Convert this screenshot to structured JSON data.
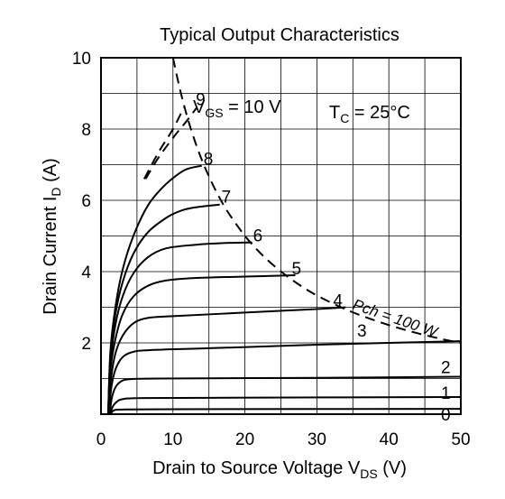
{
  "chart_data": {
    "type": "line",
    "title": "Typical Output Characteristics",
    "xlabel_main": "Drain to Source Voltage  V",
    "xlabel_sub": "DS",
    "xlabel_unit": "  (V)",
    "ylabel_main": "Drain Current  I",
    "ylabel_sub": "D",
    "ylabel_unit": "  (A)",
    "xlim": [
      0,
      50
    ],
    "ylim": [
      0,
      10
    ],
    "xticks": [
      0,
      10,
      20,
      30,
      40,
      50
    ],
    "yticks": [
      2,
      4,
      6,
      8,
      10
    ],
    "x_origin_label": "0",
    "grid": true,
    "annotations": {
      "vgs_main": "V",
      "vgs_sub": "GS",
      "vgs_value": " = 10 V",
      "tc_main": "T",
      "tc_sub": "C",
      "tc_value": " = 25°C",
      "pch_label": "Pch = 100 W"
    },
    "series": [
      {
        "name": "0",
        "label": "0",
        "style": "solid",
        "points": [
          [
            1.4,
            0
          ],
          [
            1.6,
            0.08
          ],
          [
            2,
            0.12
          ],
          [
            3,
            0.13
          ],
          [
            10,
            0.14
          ],
          [
            50,
            0.15
          ]
        ]
      },
      {
        "name": "1",
        "label": "1",
        "style": "solid",
        "points": [
          [
            1.3,
            0
          ],
          [
            1.6,
            0.2
          ],
          [
            2.2,
            0.35
          ],
          [
            3,
            0.42
          ],
          [
            5,
            0.45
          ],
          [
            15,
            0.46
          ],
          [
            50,
            0.48
          ]
        ]
      },
      {
        "name": "2",
        "label": "2",
        "style": "solid",
        "points": [
          [
            1.2,
            0
          ],
          [
            1.5,
            0.45
          ],
          [
            2,
            0.75
          ],
          [
            2.8,
            0.92
          ],
          [
            4,
            0.98
          ],
          [
            8,
            1.0
          ],
          [
            30,
            1.02
          ],
          [
            50,
            1.05
          ]
        ]
      },
      {
        "name": "3",
        "label": "3",
        "style": "solid",
        "points": [
          [
            1.1,
            0
          ],
          [
            1.4,
            0.7
          ],
          [
            2,
            1.25
          ],
          [
            3,
            1.6
          ],
          [
            4.5,
            1.75
          ],
          [
            7,
            1.8
          ],
          [
            15,
            1.85
          ],
          [
            30,
            1.95
          ],
          [
            50,
            2.05
          ]
        ]
      },
      {
        "name": "4",
        "label": "4",
        "style": "solid",
        "points": [
          [
            1.0,
            0
          ],
          [
            1.4,
            1.0
          ],
          [
            2,
            1.7
          ],
          [
            3,
            2.2
          ],
          [
            4.5,
            2.55
          ],
          [
            6.5,
            2.7
          ],
          [
            10,
            2.75
          ],
          [
            20,
            2.85
          ],
          [
            30,
            2.95
          ],
          [
            34,
            3.0
          ]
        ]
      },
      {
        "name": "5",
        "label": "5",
        "style": "solid",
        "points": [
          [
            1.0,
            0
          ],
          [
            1.3,
            1.2
          ],
          [
            2,
            2.1
          ],
          [
            3,
            2.8
          ],
          [
            4.5,
            3.3
          ],
          [
            6.5,
            3.6
          ],
          [
            9,
            3.75
          ],
          [
            13,
            3.82
          ],
          [
            20,
            3.86
          ],
          [
            27,
            3.9
          ]
        ]
      },
      {
        "name": "6",
        "label": "6",
        "style": "solid",
        "points": [
          [
            1.0,
            0
          ],
          [
            1.3,
            1.4
          ],
          [
            2,
            2.5
          ],
          [
            3,
            3.3
          ],
          [
            4.5,
            3.95
          ],
          [
            6.5,
            4.4
          ],
          [
            9,
            4.65
          ],
          [
            13,
            4.75
          ],
          [
            17,
            4.8
          ],
          [
            21,
            4.82
          ]
        ]
      },
      {
        "name": "7",
        "label": "7",
        "style": "solid",
        "points": [
          [
            1.0,
            0
          ],
          [
            1.3,
            1.6
          ],
          [
            2,
            2.8
          ],
          [
            3,
            3.7
          ],
          [
            4.5,
            4.5
          ],
          [
            6.5,
            5.1
          ],
          [
            9,
            5.5
          ],
          [
            11,
            5.7
          ],
          [
            13,
            5.8
          ],
          [
            16.5,
            5.88
          ]
        ]
      },
      {
        "name": "8",
        "label": "8",
        "style": "solid",
        "points": [
          [
            1.0,
            0
          ],
          [
            1.3,
            1.75
          ],
          [
            2,
            3.0
          ],
          [
            3,
            4.05
          ],
          [
            4.5,
            5.0
          ],
          [
            6.5,
            5.85
          ],
          [
            8.5,
            6.35
          ],
          [
            10.5,
            6.7
          ],
          [
            12,
            6.88
          ],
          [
            14,
            6.97
          ]
        ]
      },
      {
        "name": "9",
        "label": "9",
        "style": "dashed",
        "points": [
          [
            6.2,
            6.6
          ],
          [
            8,
            7.2
          ],
          [
            10,
            7.75
          ],
          [
            12,
            8.25
          ],
          [
            13.3,
            8.6
          ]
        ]
      },
      {
        "name": "10",
        "label": "",
        "style": "dashed",
        "points": [
          [
            6.0,
            6.6
          ],
          [
            8,
            7.35
          ],
          [
            10,
            8.0
          ],
          [
            11.5,
            8.6
          ]
        ]
      },
      {
        "name": "Pch = 100 W",
        "label": "",
        "style": "dashed",
        "points": [
          [
            10,
            10
          ],
          [
            11,
            9.09
          ],
          [
            12,
            8.33
          ],
          [
            13,
            7.69
          ],
          [
            14,
            7.14
          ],
          [
            15,
            6.67
          ],
          [
            16,
            6.25
          ],
          [
            17,
            5.88
          ],
          [
            18,
            5.56
          ],
          [
            20,
            5.0
          ],
          [
            22,
            4.55
          ],
          [
            24,
            4.17
          ],
          [
            26,
            3.85
          ],
          [
            28,
            3.57
          ],
          [
            30,
            3.33
          ],
          [
            33,
            3.03
          ],
          [
            36,
            2.78
          ],
          [
            40,
            2.5
          ],
          [
            44,
            2.27
          ],
          [
            48,
            2.08
          ],
          [
            50,
            2.0
          ]
        ]
      }
    ]
  }
}
